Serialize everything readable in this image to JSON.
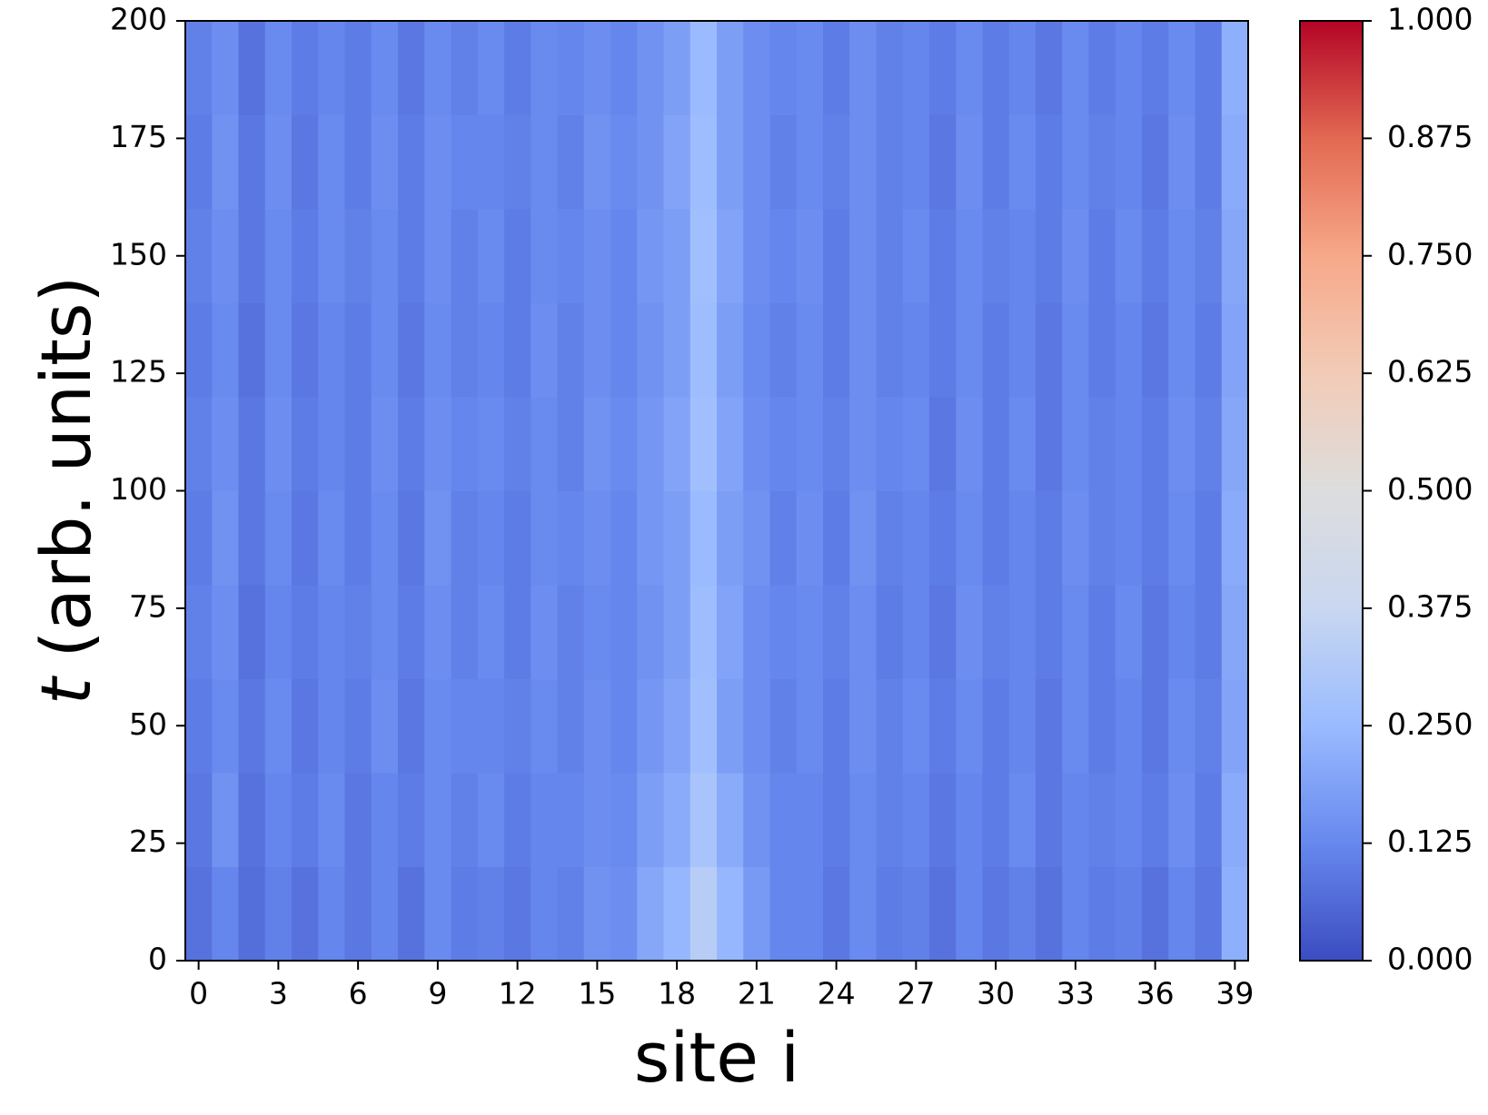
{
  "chart_data": {
    "type": "heatmap",
    "x_label": "site i",
    "y_label": [
      "t",
      "(arb. units)"
    ],
    "x": [
      0,
      1,
      2,
      3,
      4,
      5,
      6,
      7,
      8,
      9,
      10,
      11,
      12,
      13,
      14,
      15,
      16,
      17,
      18,
      19,
      20,
      21,
      22,
      23,
      24,
      25,
      26,
      27,
      28,
      29,
      30,
      31,
      32,
      33,
      34,
      35,
      36,
      37,
      38,
      39
    ],
    "yedges": [
      0,
      20,
      40,
      60,
      80,
      100,
      120,
      140,
      160,
      180,
      200
    ],
    "xlim": [
      -0.5,
      39.5
    ],
    "ylim": [
      0,
      200
    ],
    "xticks": [
      0,
      3,
      6,
      9,
      12,
      15,
      18,
      21,
      24,
      27,
      30,
      33,
      36,
      39
    ],
    "yticks": [
      0,
      25,
      50,
      75,
      100,
      125,
      150,
      175,
      200
    ],
    "clim": [
      0,
      1
    ],
    "cticks": [
      {
        "value": 0,
        "label": "0.000"
      },
      {
        "value": 0.125,
        "label": "0.125"
      },
      {
        "value": 0.25,
        "label": "0.250"
      },
      {
        "value": 0.375,
        "label": "0.375"
      },
      {
        "value": 0.5,
        "label": "0.500"
      },
      {
        "value": 0.625,
        "label": "0.625"
      },
      {
        "value": 0.75,
        "label": "0.750"
      },
      {
        "value": 0.875,
        "label": "0.875"
      },
      {
        "value": 1,
        "label": "1.000"
      }
    ],
    "colorscale": [
      "#3b4cc0",
      "#6788ee",
      "#9abbff",
      "#c9d7f0",
      "#dddddd",
      "#f2cbb7",
      "#f7a889",
      "#e26952",
      "#b40426"
    ],
    "z": [
      [
        0.08,
        0.12,
        0.07,
        0.11,
        0.08,
        0.12,
        0.09,
        0.12,
        0.08,
        0.13,
        0.1,
        0.11,
        0.09,
        0.12,
        0.11,
        0.15,
        0.14,
        0.2,
        0.24,
        0.33,
        0.24,
        0.17,
        0.12,
        0.12,
        0.09,
        0.13,
        0.1,
        0.11,
        0.08,
        0.12,
        0.09,
        0.11,
        0.08,
        0.12,
        0.1,
        0.11,
        0.08,
        0.12,
        0.09,
        0.22
      ],
      [
        0.09,
        0.15,
        0.08,
        0.12,
        0.1,
        0.13,
        0.09,
        0.12,
        0.1,
        0.13,
        0.11,
        0.13,
        0.1,
        0.12,
        0.12,
        0.14,
        0.13,
        0.18,
        0.21,
        0.29,
        0.21,
        0.15,
        0.12,
        0.12,
        0.1,
        0.13,
        0.11,
        0.12,
        0.09,
        0.12,
        0.1,
        0.13,
        0.09,
        0.12,
        0.11,
        0.12,
        0.1,
        0.14,
        0.1,
        0.21
      ],
      [
        0.1,
        0.13,
        0.09,
        0.13,
        0.09,
        0.12,
        0.1,
        0.14,
        0.09,
        0.13,
        0.12,
        0.12,
        0.11,
        0.13,
        0.11,
        0.14,
        0.12,
        0.16,
        0.19,
        0.27,
        0.18,
        0.14,
        0.11,
        0.13,
        0.1,
        0.14,
        0.11,
        0.13,
        0.1,
        0.13,
        0.1,
        0.12,
        0.09,
        0.13,
        0.1,
        0.12,
        0.09,
        0.13,
        0.11,
        0.19
      ],
      [
        0.11,
        0.14,
        0.08,
        0.12,
        0.1,
        0.12,
        0.11,
        0.13,
        0.1,
        0.14,
        0.11,
        0.13,
        0.1,
        0.14,
        0.11,
        0.13,
        0.12,
        0.15,
        0.18,
        0.26,
        0.19,
        0.14,
        0.12,
        0.13,
        0.11,
        0.14,
        0.1,
        0.12,
        0.09,
        0.14,
        0.11,
        0.12,
        0.1,
        0.13,
        0.1,
        0.13,
        0.09,
        0.12,
        0.1,
        0.2
      ],
      [
        0.1,
        0.15,
        0.09,
        0.13,
        0.09,
        0.13,
        0.1,
        0.13,
        0.09,
        0.15,
        0.11,
        0.12,
        0.1,
        0.13,
        0.12,
        0.14,
        0.12,
        0.16,
        0.18,
        0.25,
        0.18,
        0.15,
        0.11,
        0.14,
        0.1,
        0.15,
        0.11,
        0.12,
        0.1,
        0.13,
        0.1,
        0.12,
        0.1,
        0.14,
        0.11,
        0.12,
        0.1,
        0.13,
        0.1,
        0.21
      ],
      [
        0.11,
        0.14,
        0.09,
        0.14,
        0.1,
        0.12,
        0.1,
        0.14,
        0.1,
        0.14,
        0.12,
        0.13,
        0.11,
        0.13,
        0.11,
        0.15,
        0.13,
        0.16,
        0.19,
        0.27,
        0.19,
        0.14,
        0.12,
        0.13,
        0.11,
        0.14,
        0.12,
        0.13,
        0.09,
        0.14,
        0.1,
        0.13,
        0.09,
        0.13,
        0.11,
        0.12,
        0.1,
        0.14,
        0.11,
        0.2
      ],
      [
        0.1,
        0.13,
        0.08,
        0.13,
        0.09,
        0.12,
        0.1,
        0.13,
        0.09,
        0.13,
        0.11,
        0.12,
        0.1,
        0.14,
        0.11,
        0.14,
        0.12,
        0.15,
        0.18,
        0.26,
        0.18,
        0.13,
        0.11,
        0.13,
        0.1,
        0.14,
        0.11,
        0.12,
        0.1,
        0.13,
        0.1,
        0.12,
        0.09,
        0.13,
        0.1,
        0.12,
        0.09,
        0.13,
        0.1,
        0.19
      ],
      [
        0.11,
        0.14,
        0.09,
        0.13,
        0.1,
        0.13,
        0.11,
        0.13,
        0.1,
        0.14,
        0.11,
        0.13,
        0.1,
        0.13,
        0.12,
        0.14,
        0.12,
        0.16,
        0.18,
        0.27,
        0.19,
        0.14,
        0.12,
        0.14,
        0.1,
        0.14,
        0.11,
        0.13,
        0.1,
        0.13,
        0.11,
        0.12,
        0.1,
        0.14,
        0.1,
        0.13,
        0.1,
        0.13,
        0.11,
        0.2
      ],
      [
        0.1,
        0.15,
        0.09,
        0.14,
        0.09,
        0.13,
        0.1,
        0.14,
        0.1,
        0.14,
        0.12,
        0.12,
        0.11,
        0.13,
        0.11,
        0.15,
        0.13,
        0.15,
        0.19,
        0.26,
        0.18,
        0.14,
        0.11,
        0.13,
        0.11,
        0.14,
        0.11,
        0.12,
        0.09,
        0.14,
        0.1,
        0.13,
        0.1,
        0.13,
        0.11,
        0.12,
        0.09,
        0.14,
        0.1,
        0.21
      ],
      [
        0.11,
        0.14,
        0.08,
        0.13,
        0.1,
        0.12,
        0.1,
        0.13,
        0.09,
        0.13,
        0.11,
        0.13,
        0.1,
        0.13,
        0.12,
        0.14,
        0.12,
        0.15,
        0.18,
        0.25,
        0.18,
        0.14,
        0.12,
        0.13,
        0.1,
        0.14,
        0.11,
        0.12,
        0.1,
        0.13,
        0.1,
        0.12,
        0.09,
        0.13,
        0.1,
        0.12,
        0.1,
        0.13,
        0.1,
        0.22
      ]
    ]
  }
}
